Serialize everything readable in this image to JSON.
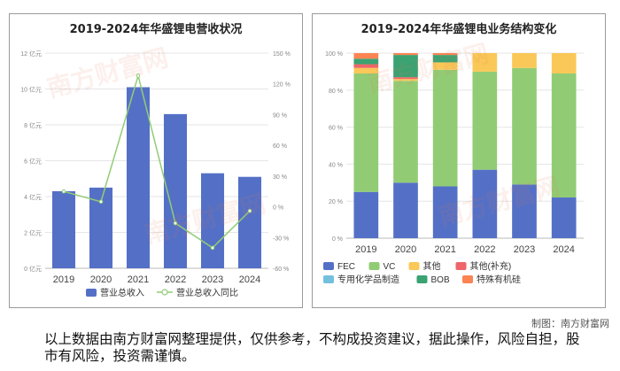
{
  "credit": "制图：南方财富网",
  "disclaimer": "以上数据由南方财富网整理提供，仅供参考，不构成投资建议，据此操作，风险自担，股市有风险，投资需谨慎。",
  "watermark": "南方财富网",
  "chart_data": [
    {
      "type": "bar",
      "title": "2019-2024年华盛锂电营收状况",
      "categories": [
        "2019",
        "2020",
        "2021",
        "2022",
        "2023",
        "2024"
      ],
      "y_left": {
        "ylim": [
          0,
          12
        ],
        "ticks": [
          0,
          2,
          4,
          6,
          8,
          10,
          12
        ],
        "tick_labels": [
          "0 亿元",
          "2 亿元",
          "4 亿元",
          "6 亿元",
          "8 亿元",
          "10 亿元",
          "12 亿元"
        ]
      },
      "y_right": {
        "ylim": [
          -60,
          150
        ],
        "ticks": [
          -60,
          -30,
          0,
          30,
          60,
          90,
          120,
          150
        ],
        "tick_labels": [
          "-60 %",
          "-30 %",
          "0 %",
          "30 %",
          "60 %",
          "90 %",
          "120 %",
          "150 %"
        ]
      },
      "series": [
        {
          "name": "营业总收入",
          "kind": "bar",
          "axis": "left",
          "color": "#5470c6",
          "values": [
            4.3,
            4.5,
            10.1,
            8.6,
            5.3,
            5.1
          ]
        },
        {
          "name": "营业总收入同比",
          "kind": "line",
          "axis": "right",
          "color": "#91cc75",
          "values": [
            15,
            5,
            128,
            -16,
            -40,
            -4
          ]
        }
      ],
      "grid": true,
      "legend": "bottom"
    },
    {
      "type": "bar",
      "stacked": true,
      "title": "2019-2024年华盛锂电业务结构变化",
      "categories": [
        "2019",
        "2020",
        "2021",
        "2022",
        "2023",
        "2024"
      ],
      "ylim": [
        0,
        100
      ],
      "ticks": [
        0,
        20,
        40,
        60,
        80,
        100
      ],
      "tick_labels": [
        "0 %",
        "20 %",
        "40 %",
        "60 %",
        "80 %",
        "100 %"
      ],
      "series": [
        {
          "name": "FEC",
          "color": "#5470c6",
          "values": [
            25,
            30,
            28,
            37,
            29,
            22
          ]
        },
        {
          "name": "VC",
          "color": "#91cc75",
          "values": [
            64,
            55,
            63,
            53,
            63,
            67
          ]
        },
        {
          "name": "其他",
          "color": "#fac858",
          "values": [
            3,
            1,
            4,
            10,
            8,
            11
          ]
        },
        {
          "name": "其他(补充)",
          "color": "#ee6666",
          "values": [
            2,
            1,
            0,
            0,
            0,
            0
          ]
        },
        {
          "name": "专用化学品制造",
          "color": "#73c0de",
          "values": [
            0,
            0,
            0,
            0,
            0,
            0
          ]
        },
        {
          "name": "BOB",
          "color": "#3ba272",
          "values": [
            3,
            12,
            4,
            0,
            0,
            0
          ]
        },
        {
          "name": "特殊有机硅",
          "color": "#fc8452",
          "values": [
            3,
            1,
            1,
            0,
            0,
            0
          ]
        }
      ],
      "grid": true,
      "legend": "bottom"
    }
  ]
}
